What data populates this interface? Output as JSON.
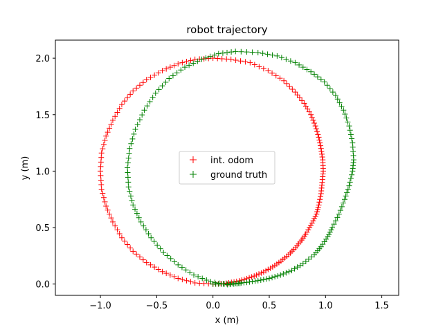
{
  "chart_data": {
    "type": "scatter",
    "title": "robot trajectory",
    "xlabel": "x (m)",
    "ylabel": "y (m)",
    "xlim": [
      -1.4,
      1.65
    ],
    "ylim": [
      -0.1,
      2.16
    ],
    "xticks": [
      -1.0,
      -0.5,
      0.0,
      0.5,
      1.0,
      1.5
    ],
    "xtick_labels": [
      "−1.0",
      "−0.5",
      "0.0",
      "0.5",
      "1.0",
      "1.5"
    ],
    "yticks": [
      0.0,
      0.5,
      1.0,
      1.5,
      2.0
    ],
    "ytick_labels": [
      "0.0",
      "0.5",
      "1.0",
      "1.5",
      "2.0"
    ],
    "grid": false,
    "legend_position": "center",
    "marker": "+",
    "series": [
      {
        "name": "int. odom",
        "color": "#ff0000",
        "points": [
          [
            0.0,
            0.0
          ],
          [
            0.094,
            0.004
          ],
          [
            0.187,
            0.018
          ],
          [
            0.278,
            0.04
          ],
          [
            0.366,
            0.071
          ],
          [
            0.45,
            0.107
          ],
          [
            0.53,
            0.152
          ],
          [
            0.604,
            0.203
          ],
          [
            0.672,
            0.26
          ],
          [
            0.733,
            0.322
          ],
          [
            0.788,
            0.389
          ],
          [
            0.835,
            0.46
          ],
          [
            0.88,
            0.54
          ],
          [
            0.92,
            0.62
          ],
          [
            0.94,
            0.7
          ],
          [
            0.96,
            0.8
          ],
          [
            0.97,
            0.9
          ],
          [
            0.98,
            1.0
          ],
          [
            0.975,
            1.1
          ],
          [
            0.96,
            1.2
          ],
          [
            0.94,
            1.3
          ],
          [
            0.91,
            1.4
          ],
          [
            0.87,
            1.5
          ],
          [
            0.81,
            1.6
          ],
          [
            0.73,
            1.7
          ],
          [
            0.63,
            1.8
          ],
          [
            0.49,
            1.89
          ],
          [
            0.33,
            1.96
          ],
          [
            0.16,
            1.99
          ],
          [
            0.0,
            2.0
          ],
          [
            -0.16,
            1.99
          ],
          [
            -0.31,
            1.95
          ],
          [
            -0.45,
            1.89
          ],
          [
            -0.59,
            1.81
          ],
          [
            -0.71,
            1.71
          ],
          [
            -0.81,
            1.59
          ],
          [
            -0.89,
            1.45
          ],
          [
            -0.95,
            1.31
          ],
          [
            -0.99,
            1.16
          ],
          [
            -1.0,
            1.0
          ],
          [
            -0.99,
            0.84
          ],
          [
            -0.95,
            0.69
          ],
          [
            -0.89,
            0.55
          ],
          [
            -0.81,
            0.41
          ],
          [
            -0.71,
            0.29
          ],
          [
            -0.59,
            0.19
          ],
          [
            -0.45,
            0.11
          ],
          [
            -0.31,
            0.05
          ],
          [
            -0.16,
            0.01
          ],
          [
            0.0,
            0.0
          ]
        ]
      },
      {
        "name": "ground truth",
        "color": "#008000",
        "points": [
          [
            0.0,
            0.0
          ],
          [
            0.1,
            0.0
          ],
          [
            0.2,
            0.005
          ],
          [
            0.3,
            0.015
          ],
          [
            0.4,
            0.03
          ],
          [
            0.5,
            0.05
          ],
          [
            0.6,
            0.08
          ],
          [
            0.7,
            0.12
          ],
          [
            0.8,
            0.18
          ],
          [
            0.9,
            0.26
          ],
          [
            0.96,
            0.33
          ],
          [
            1.02,
            0.42
          ],
          [
            1.06,
            0.5
          ],
          [
            1.12,
            0.62
          ],
          [
            1.17,
            0.75
          ],
          [
            1.21,
            0.87
          ],
          [
            1.24,
            1.0
          ],
          [
            1.25,
            1.1
          ],
          [
            1.24,
            1.25
          ],
          [
            1.21,
            1.4
          ],
          [
            1.16,
            1.54
          ],
          [
            1.09,
            1.67
          ],
          [
            0.99,
            1.79
          ],
          [
            0.87,
            1.88
          ],
          [
            0.73,
            1.96
          ],
          [
            0.57,
            2.02
          ],
          [
            0.4,
            2.05
          ],
          [
            0.2,
            2.06
          ],
          [
            0.05,
            2.04
          ],
          [
            -0.1,
            1.99
          ],
          [
            -0.25,
            1.92
          ],
          [
            -0.39,
            1.82
          ],
          [
            -0.51,
            1.69
          ],
          [
            -0.61,
            1.54
          ],
          [
            -0.69,
            1.37
          ],
          [
            -0.74,
            1.2
          ],
          [
            -0.76,
            1.03
          ],
          [
            -0.75,
            0.86
          ],
          [
            -0.71,
            0.7
          ],
          [
            -0.64,
            0.55
          ],
          [
            -0.55,
            0.41
          ],
          [
            -0.44,
            0.28
          ],
          [
            -0.31,
            0.17
          ],
          [
            -0.17,
            0.08
          ],
          [
            -0.02,
            0.02
          ],
          [
            0.13,
            -0.005
          ],
          [
            0.24,
            0.005
          ]
        ]
      }
    ]
  }
}
